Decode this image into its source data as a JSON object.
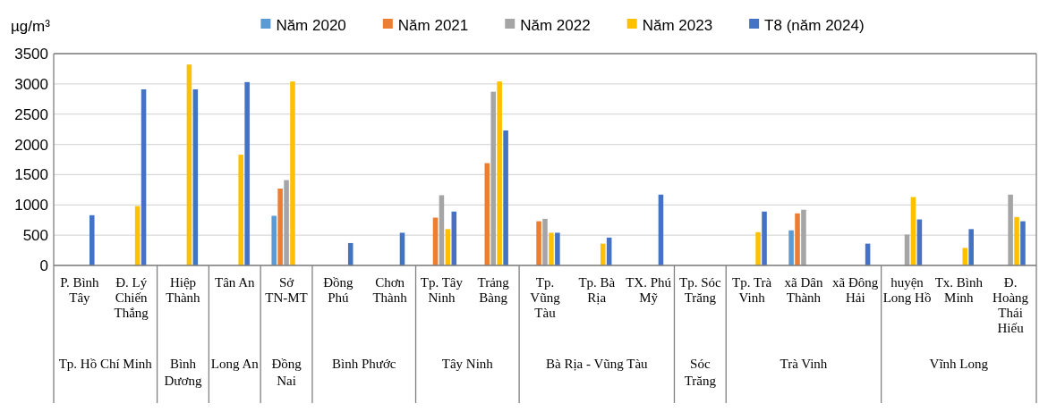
{
  "chart_data": {
    "type": "bar",
    "ylabel": "µg/m³",
    "categories": [
      "P. Bình Tây",
      "Đ. Lý Chiến Thắng",
      "Hiệp Thành",
      "Tân An",
      "Sở TN-MT",
      "Đồng Phú",
      "Chơn Thành",
      "Tp. Tây Ninh",
      "Trảng Bàng",
      "Tp. Vũng Tàu",
      "Tp. Bà Rịa",
      "TX. Phú Mỹ",
      "Tp. Sóc Trăng",
      "Tp. Trà Vinh",
      "xã Dân Thành",
      "xã Đông Hải",
      "huyện Long Hồ",
      "Tx. Bình Minh",
      "Đ. Hoàng Thái Hiếu"
    ],
    "series": [
      {
        "name": "Năm 2020",
        "color": "#5b9bd5",
        "values": [
          null,
          null,
          null,
          null,
          820,
          null,
          null,
          null,
          null,
          null,
          null,
          null,
          null,
          null,
          580,
          null,
          null,
          null,
          null
        ]
      },
      {
        "name": "Năm 2021",
        "color": "#ed7d31",
        "values": [
          null,
          null,
          null,
          null,
          1270,
          null,
          null,
          790,
          1690,
          730,
          null,
          null,
          null,
          null,
          860,
          null,
          null,
          null,
          null
        ]
      },
      {
        "name": "Năm 2022",
        "color": "#a5a5a5",
        "values": [
          null,
          null,
          null,
          null,
          1410,
          null,
          null,
          1160,
          2870,
          770,
          null,
          null,
          null,
          null,
          920,
          null,
          510,
          null,
          1170
        ]
      },
      {
        "name": "Năm 2023",
        "color": "#ffc000",
        "values": [
          null,
          980,
          3320,
          1830,
          3040,
          null,
          null,
          600,
          3040,
          540,
          360,
          null,
          null,
          550,
          null,
          null,
          1130,
          290,
          800
        ]
      },
      {
        "name": "T8 (năm 2024)",
        "color": "#4472c4",
        "values": [
          830,
          2910,
          2910,
          3030,
          null,
          370,
          540,
          890,
          2230,
          540,
          460,
          1170,
          null,
          890,
          null,
          360,
          760,
          600,
          730
        ]
      }
    ],
    "ylim": [
      0,
      3500
    ],
    "yticks": [
      0,
      500,
      1000,
      1500,
      2000,
      2500,
      3000,
      3500
    ],
    "grid": "y",
    "legend": "top",
    "annotations": [
      "Tp. Hồ Chí Minh",
      "Bình Dương",
      "Long An",
      "Đồng Nai",
      "Bình Phước",
      "Tây Ninh",
      "Bà Rịa - Vũng Tàu",
      "Sóc Trăng",
      "Trà Vinh",
      "Vĩnh Long"
    ]
  }
}
